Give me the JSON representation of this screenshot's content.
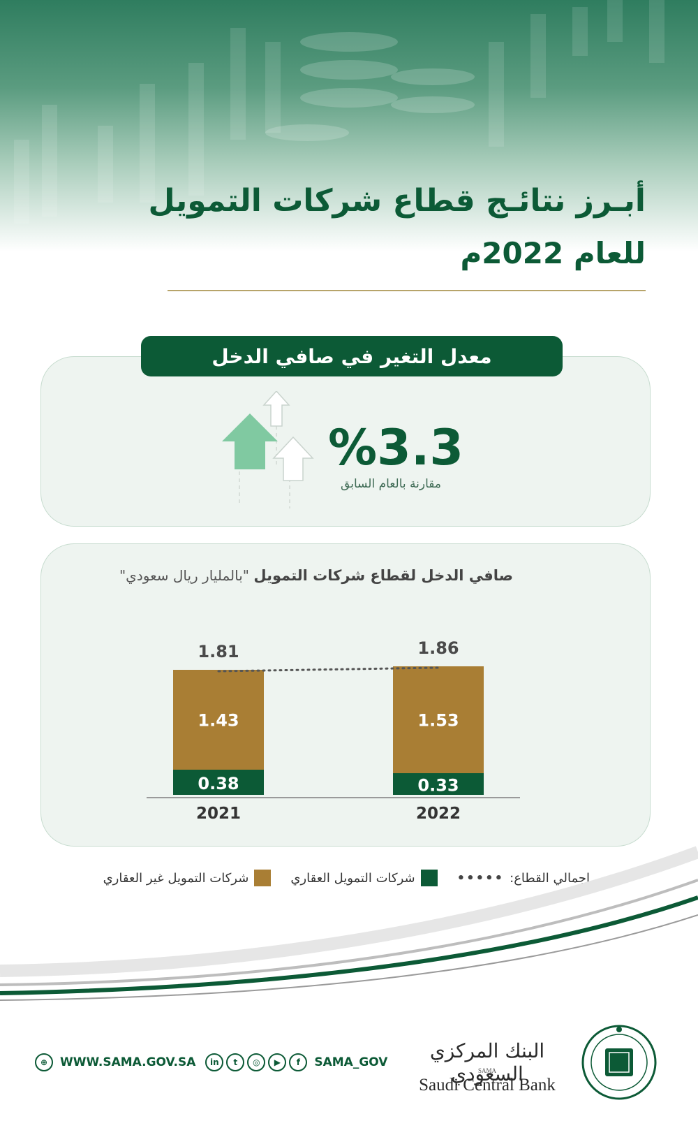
{
  "header": {
    "title_line1": "أبـرز نتائـج قطاع شركات التمويل",
    "title_line2": "للعام 2022م"
  },
  "income_change": {
    "heading": "معدل التغير في صافي الدخل",
    "value": "%3.3",
    "subtitle": "مقارنة بالعام السابق",
    "icon": "up-arrows-icon",
    "accent_color": "#0c5a36"
  },
  "chart_data": {
    "type": "bar",
    "stacked": true,
    "title": "صافي الدخل لقطاع شركات التمويل",
    "unit": "\"بالمليار ريال سعودي\"",
    "categories": [
      "2021",
      "2022"
    ],
    "series": [
      {
        "name": "شركات التمويل العقاري",
        "values": [
          0.38,
          0.33
        ],
        "color": "#0c5a36"
      },
      {
        "name": "شركات التمويل غير العقاري",
        "values": [
          1.43,
          1.53
        ],
        "color": "#a97e34"
      }
    ],
    "totals": {
      "name": "إجمالي القطاع:",
      "values": [
        1.81,
        1.86
      ]
    },
    "grid": false,
    "legend_position": "bottom"
  },
  "footer": {
    "website": "WWW.SAMA.GOV.SA",
    "handle": "SAMA_GOV",
    "social_icons": [
      "linkedin-icon",
      "twitter-icon",
      "instagram-icon",
      "youtube-icon",
      "facebook-icon"
    ],
    "bank_name_ar": "البنك المركزي السعودي",
    "bank_abbr": "SAMA",
    "bank_name_en": "Saudi Central Bank"
  }
}
